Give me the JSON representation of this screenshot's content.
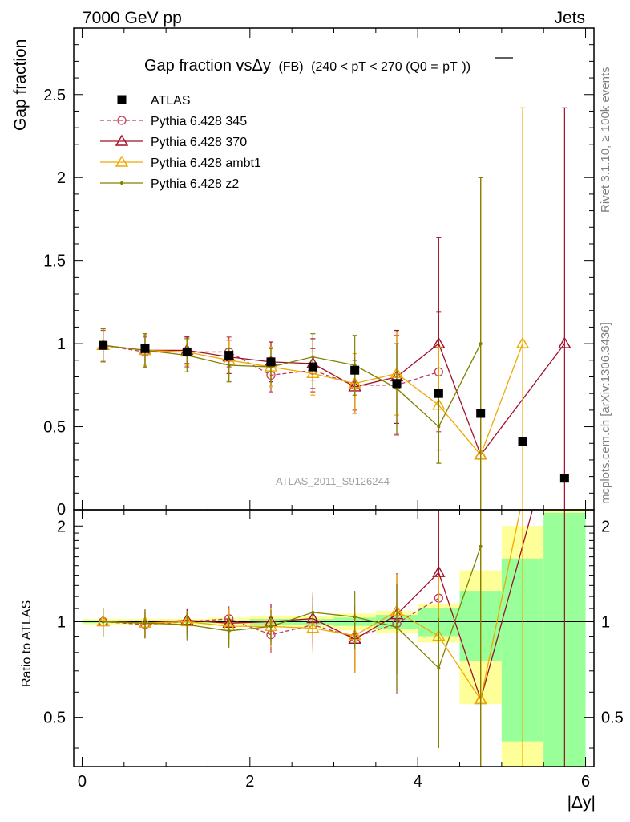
{
  "header": {
    "left": "7000 GeV pp",
    "right": "Jets"
  },
  "side_labels": {
    "rivet": "Rivet 3.1.10, ≥ 100k events",
    "mcplots": "mcplots.cern.ch [arXiv:1306.3436]"
  },
  "chart_data": {
    "type": "scatter",
    "title_main": "Gap fraction vsΔy",
    "title_fb": "(FB)",
    "title_cut": "(240 < pT < 270 (Q0 =",
    "title_pt": "pT",
    "title_close": "))",
    "analysis_label": "ATLAS_2011_S9126244",
    "xlabel": "|Δy|",
    "ylabel_top": "Gap fraction",
    "ylabel_bottom": "Ratio to ATLAS",
    "xlim": [
      -0.1,
      6.1
    ],
    "ylim_top": [
      0,
      2.9
    ],
    "ylim_bottom": [
      0.35,
      2.25
    ],
    "ratio_log_scale": true,
    "x_ticks": [
      0,
      2,
      4,
      6
    ],
    "x_tick_labels": [
      "0",
      "2",
      "4",
      "6"
    ],
    "y_ticks_top": [
      0.5,
      1,
      1.5,
      2,
      2.5
    ],
    "y_tick_labels_top": [
      "0.5",
      "1",
      "1.5",
      "2",
      "2.5"
    ],
    "y_zero_label": "0",
    "y_ticks_bottom": [
      0.5,
      1,
      2
    ],
    "y_tick_labels_bottom": [
      "0.5",
      "1",
      "2"
    ],
    "x_centers": [
      0.25,
      0.75,
      1.25,
      1.75,
      2.25,
      2.75,
      3.25,
      3.75,
      4.25,
      4.75,
      5.25,
      5.75
    ],
    "data": {
      "name": "ATLAS",
      "color": "#000000",
      "y": [
        0.99,
        0.97,
        0.95,
        0.93,
        0.89,
        0.86,
        0.84,
        0.76,
        0.7,
        0.58,
        0.41,
        0.19
      ],
      "ratio_band_1sigma": [
        0.01,
        0.01,
        0.01,
        0.01,
        0.02,
        0.02,
        0.03,
        0.05,
        0.1,
        0.25,
        0.58,
        1.2
      ],
      "ratio_band_2sigma": [
        0.02,
        0.02,
        0.02,
        0.03,
        0.04,
        0.04,
        0.06,
        0.08,
        0.14,
        0.45,
        1.0,
        1.4
      ]
    },
    "series": [
      {
        "name": "Pythia 6.428 345",
        "color": "#c0405a",
        "dashed": true,
        "marker": "circle",
        "y": [
          0.99,
          0.95,
          0.95,
          0.95,
          0.81,
          0.84,
          0.75,
          0.75,
          0.83
        ],
        "err": [
          0.09,
          0.09,
          0.09,
          0.09,
          0.1,
          0.13,
          0.15,
          0.3,
          0.36
        ]
      },
      {
        "name": "Pythia 6.428 370",
        "color": "#a0102a",
        "dashed": false,
        "marker": "triangle",
        "y": [
          0.99,
          0.96,
          0.96,
          0.92,
          0.89,
          0.88,
          0.74,
          0.8,
          1.0,
          0.33,
          null,
          1.0
        ],
        "err": [
          0.1,
          0.1,
          0.08,
          0.1,
          0.12,
          0.15,
          0.16,
          0.28,
          0.64,
          1.67,
          null,
          1.42
        ]
      },
      {
        "name": "Pythia 6.428 ambt1",
        "color": "#f0a800",
        "dashed": false,
        "marker": "triangle",
        "y": [
          0.99,
          0.96,
          0.95,
          0.9,
          0.86,
          0.82,
          0.76,
          0.82,
          0.63,
          0.33,
          1.0
        ],
        "err": [
          0.1,
          0.09,
          0.08,
          0.12,
          0.12,
          0.13,
          0.18,
          0.25,
          0.35,
          1.67,
          1.42
        ]
      },
      {
        "name": "Pythia 6.428 z2",
        "color": "#808000",
        "dashed": false,
        "marker": "dot",
        "y": [
          0.99,
          0.96,
          0.93,
          0.87,
          0.86,
          0.92,
          0.87,
          0.73,
          0.5,
          1.0
        ],
        "err": [
          0.1,
          0.1,
          0.1,
          0.1,
          0.11,
          0.14,
          0.18,
          0.27,
          0.22,
          1.0
        ]
      }
    ]
  }
}
